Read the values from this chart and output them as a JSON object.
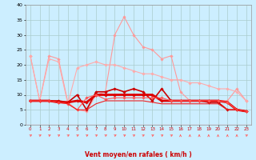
{
  "xlabel": "Vent moyen/en rafales ( km/h )",
  "x": [
    0,
    1,
    2,
    3,
    4,
    5,
    6,
    7,
    8,
    9,
    10,
    11,
    12,
    13,
    14,
    15,
    16,
    17,
    18,
    19,
    20,
    21,
    22,
    23
  ],
  "ylim": [
    0,
    40
  ],
  "yticks": [
    0,
    5,
    10,
    15,
    20,
    25,
    30,
    35,
    40
  ],
  "bg_color": "#cceeff",
  "grid_color": "#aacccc",
  "lines": [
    {
      "y": [
        23,
        8,
        23,
        22,
        7.5,
        5,
        4.5,
        10,
        11,
        30,
        36,
        30,
        26,
        25,
        22,
        23,
        11,
        8,
        8,
        8,
        8,
        8,
        12,
        8
      ],
      "color": "#ff9999",
      "lw": 0.8,
      "marker": "D",
      "ms": 1.8
    },
    {
      "y": [
        23,
        8,
        22,
        21,
        7,
        19,
        20,
        21,
        20,
        20,
        19,
        18,
        17,
        17,
        16,
        15,
        15,
        14,
        14,
        13,
        12,
        12,
        11,
        8
      ],
      "color": "#ffaaaa",
      "lw": 0.8,
      "marker": "D",
      "ms": 1.8
    },
    {
      "y": [
        8,
        8,
        8,
        8,
        7.5,
        10,
        5,
        11,
        11,
        12,
        11,
        12,
        11,
        8,
        12,
        8,
        8,
        8,
        8,
        7.5,
        7.5,
        5,
        5,
        4.5
      ],
      "color": "#cc0000",
      "lw": 1.2,
      "marker": "D",
      "ms": 1.8
    },
    {
      "y": [
        8,
        8,
        8,
        7.5,
        7.5,
        8,
        7.5,
        10,
        10,
        10,
        10,
        10,
        10,
        10,
        8,
        8,
        8,
        8,
        8,
        8,
        8,
        7.5,
        5,
        4.5
      ],
      "color": "#dd0000",
      "lw": 2.0,
      "marker": "D",
      "ms": 1.8
    },
    {
      "y": [
        8,
        8,
        8,
        7.5,
        7,
        5,
        9,
        10,
        8.5,
        9,
        9,
        9,
        9,
        9,
        9,
        8,
        8,
        8,
        8,
        8,
        8,
        7.5,
        5,
        4.5
      ],
      "color": "#ff5555",
      "lw": 0.8,
      "marker": "D",
      "ms": 1.8
    },
    {
      "y": [
        8,
        8,
        8,
        7.5,
        7,
        5,
        5,
        7,
        8,
        8,
        8,
        8,
        8,
        7.5,
        7,
        7,
        7,
        7,
        7,
        7,
        7,
        5,
        5,
        4.5
      ],
      "color": "#ee2222",
      "lw": 0.8,
      "marker": null,
      "ms": 0
    }
  ],
  "arrow_color": "#ff6666",
  "text_color": "#cc0000",
  "xlabel_color": "#cc0000",
  "tick_color": "#cc0000"
}
